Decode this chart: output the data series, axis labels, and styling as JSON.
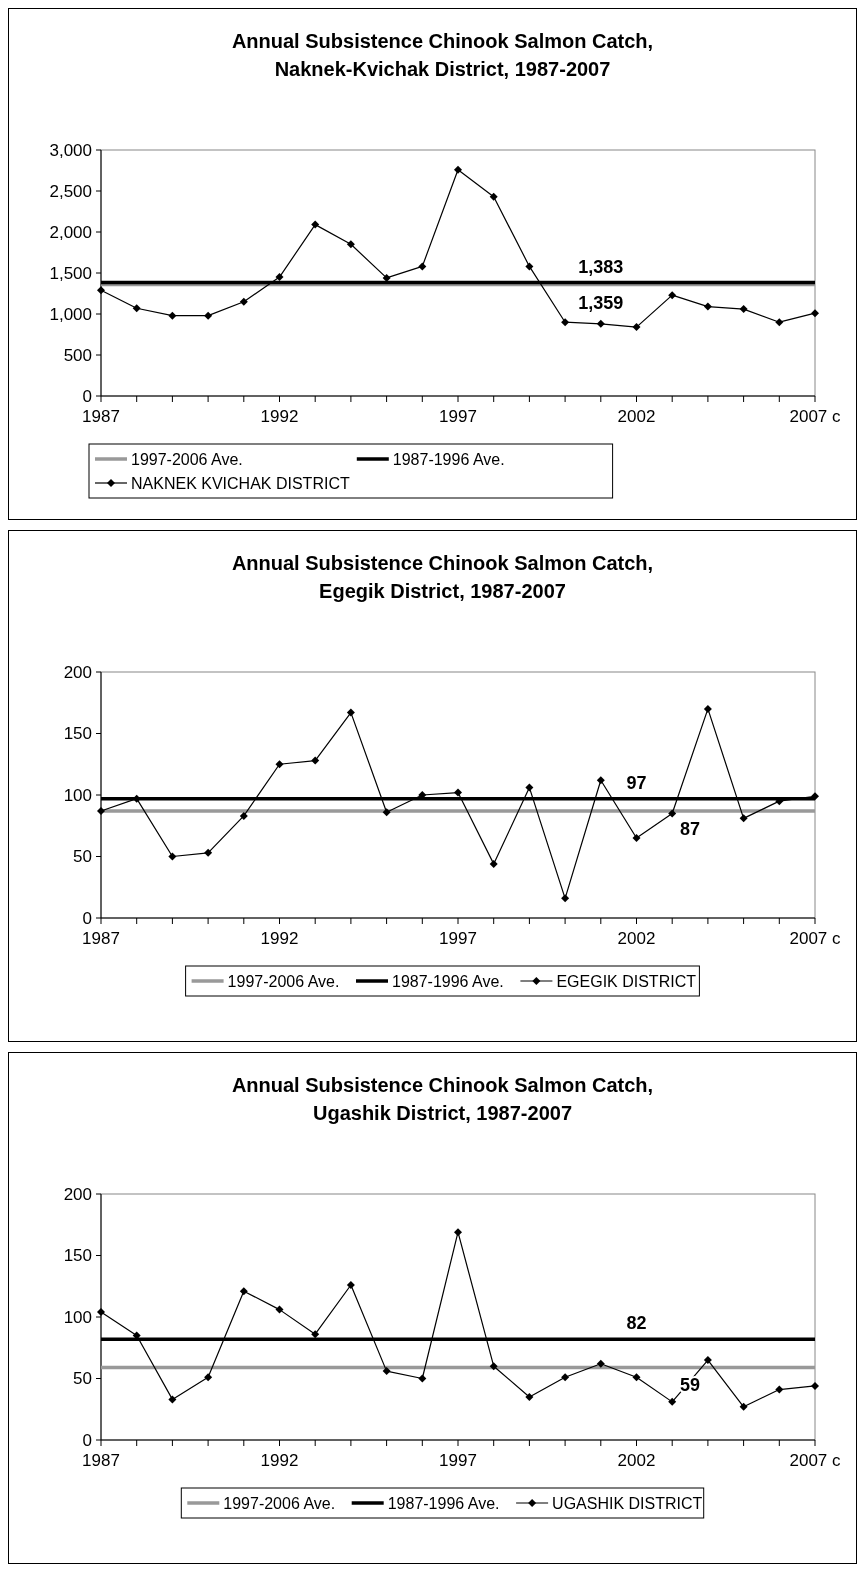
{
  "chart_data": [
    {
      "type": "line",
      "title": "Annual Subsistence Chinook Salmon Catch, Naknek-Kvichak District, 1987-2007",
      "x": [
        1987,
        1988,
        1989,
        1990,
        1991,
        1992,
        1993,
        1994,
        1995,
        1996,
        1997,
        1998,
        1999,
        2000,
        2001,
        2002,
        2003,
        2004,
        2005,
        2006,
        2007
      ],
      "series": [
        {
          "name": "1997-2006 Ave.",
          "color": "#999999",
          "values": [
            1359,
            1359,
            1359,
            1359,
            1359,
            1359,
            1359,
            1359,
            1359,
            1359,
            1359,
            1359,
            1359,
            1359,
            1359,
            1359,
            1359,
            1359,
            1359,
            1359,
            1359
          ],
          "marker": "none"
        },
        {
          "name": "1987-1996 Ave.",
          "color": "#000000",
          "values": [
            1383,
            1383,
            1383,
            1383,
            1383,
            1383,
            1383,
            1383,
            1383,
            1383,
            1383,
            1383,
            1383,
            1383,
            1383,
            1383,
            1383,
            1383,
            1383,
            1383,
            1383
          ],
          "marker": "none"
        },
        {
          "name": "NAKNEK KVICHAK DISTRICT",
          "color": "#000000",
          "marker": "diamond",
          "values": [
            1290,
            1070,
            980,
            980,
            1150,
            1450,
            2090,
            1850,
            1440,
            1580,
            2760,
            2430,
            1580,
            900,
            880,
            840,
            1230,
            1090,
            1060,
            900,
            1010
          ]
        }
      ],
      "xlim": [
        1987,
        2007
      ],
      "xticks": [
        1987,
        {
          "value": 1988,
          "label": null
        },
        {
          "value": 1989,
          "label": null
        },
        {
          "value": 1990,
          "label": null
        },
        {
          "value": 1991,
          "label": null
        },
        1992,
        {
          "value": 1993,
          "label": null
        },
        {
          "value": 1994,
          "label": null
        },
        {
          "value": 1995,
          "label": null
        },
        {
          "value": 1996,
          "label": null
        },
        1997,
        {
          "value": 1998,
          "label": null
        },
        {
          "value": 1999,
          "label": null
        },
        {
          "value": 2000,
          "label": null
        },
        {
          "value": 2001,
          "label": null
        },
        2002,
        {
          "value": 2003,
          "label": null
        },
        {
          "value": 2004,
          "label": null
        },
        {
          "value": 2005,
          "label": null
        },
        {
          "value": 2006,
          "label": null
        },
        {
          "value": 2007,
          "label": "2007 c"
        }
      ],
      "ylim": [
        0,
        3000
      ],
      "yticks": [
        0,
        500,
        {
          "value": 1000,
          "label": "1,000"
        },
        {
          "value": 1500,
          "label": "1,500"
        },
        {
          "value": 2000,
          "label": "2,000"
        },
        {
          "value": 2500,
          "label": "2,500"
        },
        {
          "value": 3000,
          "label": "3,000"
        }
      ],
      "annotations": [
        {
          "text": "1,383",
          "x": 2001,
          "y": 1383
        },
        {
          "text": "1,359",
          "x": 2001,
          "y": 1359
        }
      ],
      "grid": false,
      "legend": "bottom",
      "line_style": "solid"
    },
    {
      "type": "line",
      "title": "Annual Subsistence Chinook Salmon Catch, Egegik District, 1987-2007",
      "x": [
        1987,
        1988,
        1989,
        1990,
        1991,
        1992,
        1993,
        1994,
        1995,
        1996,
        1997,
        1998,
        1999,
        2000,
        2001,
        2002,
        2003,
        2004,
        2005,
        2006,
        2007
      ],
      "series": [
        {
          "name": "1997-2006 Ave.",
          "color": "#999999",
          "values": [
            87,
            87,
            87,
            87,
            87,
            87,
            87,
            87,
            87,
            87,
            87,
            87,
            87,
            87,
            87,
            87,
            87,
            87,
            87,
            87,
            87
          ],
          "marker": "none"
        },
        {
          "name": "1987-1996 Ave.",
          "color": "#000000",
          "values": [
            97,
            97,
            97,
            97,
            97,
            97,
            97,
            97,
            97,
            97,
            97,
            97,
            97,
            97,
            97,
            97,
            97,
            97,
            97,
            97,
            97
          ],
          "marker": "none"
        },
        {
          "name": "EGEGIK DISTRICT",
          "color": "#000000",
          "marker": "diamond",
          "values": [
            87,
            97,
            50,
            53,
            83,
            125,
            128,
            167,
            86,
            100,
            102,
            44,
            106,
            16,
            112,
            65,
            85,
            170,
            81,
            95,
            99
          ]
        }
      ],
      "xlim": [
        1987,
        2007
      ],
      "xticks": [
        1987,
        {
          "value": 1988,
          "label": null
        },
        {
          "value": 1989,
          "label": null
        },
        {
          "value": 1990,
          "label": null
        },
        {
          "value": 1991,
          "label": null
        },
        1992,
        {
          "value": 1993,
          "label": null
        },
        {
          "value": 1994,
          "label": null
        },
        {
          "value": 1995,
          "label": null
        },
        {
          "value": 1996,
          "label": null
        },
        1997,
        {
          "value": 1998,
          "label": null
        },
        {
          "value": 1999,
          "label": null
        },
        {
          "value": 2000,
          "label": null
        },
        {
          "value": 2001,
          "label": null
        },
        2002,
        {
          "value": 2003,
          "label": null
        },
        {
          "value": 2004,
          "label": null
        },
        {
          "value": 2005,
          "label": null
        },
        {
          "value": 2006,
          "label": null
        },
        {
          "value": 2007,
          "label": "2007 c"
        }
      ],
      "ylim": [
        0,
        200
      ],
      "yticks": [
        0,
        50,
        100,
        150,
        200
      ],
      "annotations": [
        {
          "text": "97",
          "x": 2002,
          "y": 97
        },
        {
          "text": "87",
          "x": 2003.5,
          "y": 87
        }
      ],
      "grid": false,
      "legend": "bottom",
      "line_style": "solid"
    },
    {
      "type": "line",
      "title": "Annual Subsistence Chinook Salmon Catch, Ugashik District, 1987-2007",
      "x": [
        1987,
        1988,
        1989,
        1990,
        1991,
        1992,
        1993,
        1994,
        1995,
        1996,
        1997,
        1998,
        1999,
        2000,
        2001,
        2002,
        2003,
        2004,
        2005,
        2006,
        2007
      ],
      "series": [
        {
          "name": "1997-2006 Ave.",
          "color": "#999999",
          "values": [
            59,
            59,
            59,
            59,
            59,
            59,
            59,
            59,
            59,
            59,
            59,
            59,
            59,
            59,
            59,
            59,
            59,
            59,
            59,
            59,
            59
          ],
          "marker": "none"
        },
        {
          "name": "1987-1996 Ave.",
          "color": "#000000",
          "values": [
            82,
            82,
            82,
            82,
            82,
            82,
            82,
            82,
            82,
            82,
            82,
            82,
            82,
            82,
            82,
            82,
            82,
            82,
            82,
            82,
            82
          ],
          "marker": "none"
        },
        {
          "name": "UGASHIK DISTRICT",
          "color": "#000000",
          "marker": "diamond",
          "values": [
            104,
            85,
            33,
            51,
            121,
            106,
            86,
            126,
            56,
            50,
            169,
            60,
            35,
            51,
            62,
            51,
            31,
            65,
            27,
            41,
            44
          ]
        }
      ],
      "xlim": [
        1987,
        2007
      ],
      "xticks": [
        1987,
        {
          "value": 1988,
          "label": null
        },
        {
          "value": 1989,
          "label": null
        },
        {
          "value": 1990,
          "label": null
        },
        {
          "value": 1991,
          "label": null
        },
        1992,
        {
          "value": 1993,
          "label": null
        },
        {
          "value": 1994,
          "label": null
        },
        {
          "value": 1995,
          "label": null
        },
        {
          "value": 1996,
          "label": null
        },
        1997,
        {
          "value": 1998,
          "label": null
        },
        {
          "value": 1999,
          "label": null
        },
        {
          "value": 2000,
          "label": null
        },
        {
          "value": 2001,
          "label": null
        },
        2002,
        {
          "value": 2003,
          "label": null
        },
        {
          "value": 2004,
          "label": null
        },
        {
          "value": 2005,
          "label": null
        },
        {
          "value": 2006,
          "label": null
        },
        {
          "value": 2007,
          "label": "2007 c"
        }
      ],
      "ylim": [
        0,
        200
      ],
      "yticks": [
        0,
        50,
        100,
        150,
        200
      ],
      "annotations": [
        {
          "text": "82",
          "x": 2002,
          "y": 82
        },
        {
          "text": "59",
          "x": 2003.5,
          "y": 59
        }
      ],
      "grid": false,
      "legend": "bottom",
      "line_style": "solid"
    }
  ]
}
